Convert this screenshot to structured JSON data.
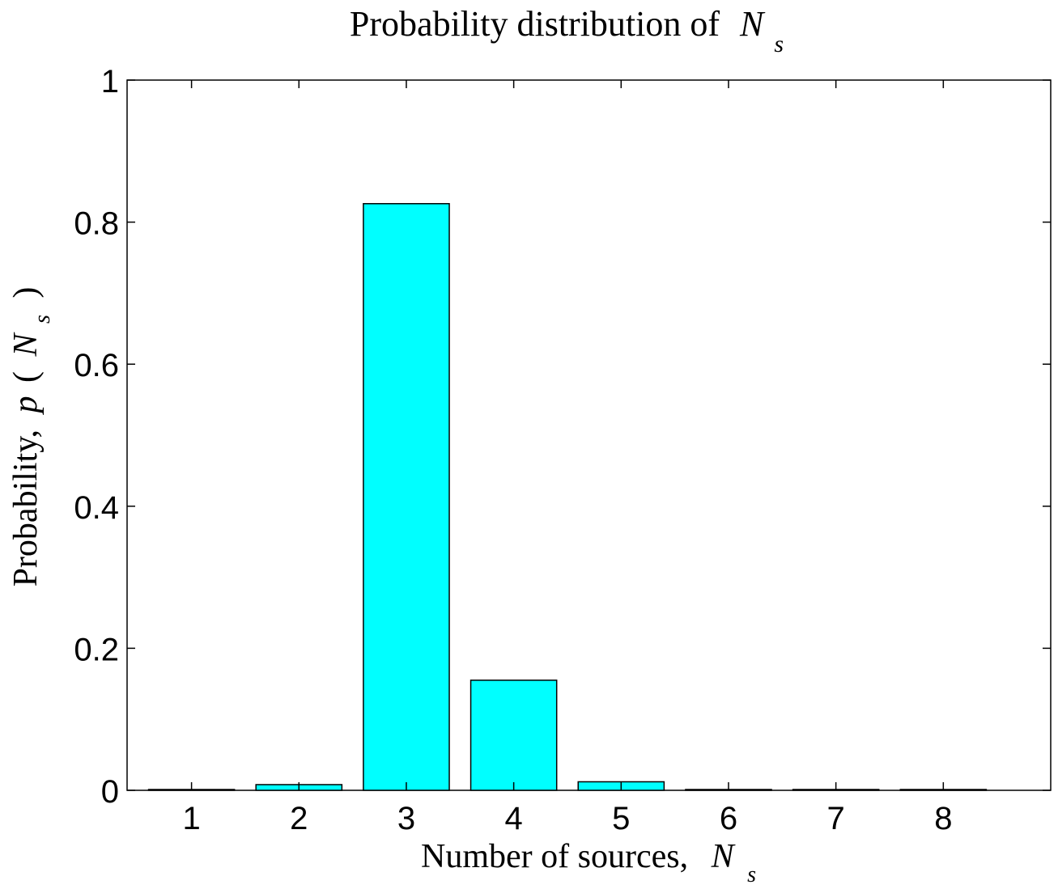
{
  "chart_data": {
    "type": "bar",
    "title_text": "Probability distribution of",
    "title_var": "N",
    "title_sub": "s",
    "xlabel_text": "Number of sources,",
    "xlabel_var": "N",
    "xlabel_sub": "s",
    "ylabel_text": "Probability,",
    "ylabel_var_p": "p",
    "ylabel_open": "(",
    "ylabel_var": "N",
    "ylabel_sub": "s",
    "ylabel_close": ")",
    "categories": [
      "1",
      "2",
      "3",
      "4",
      "5",
      "6",
      "7",
      "8"
    ],
    "values": [
      0.001,
      0.008,
      0.826,
      0.155,
      0.012,
      0.001,
      0,
      0
    ],
    "xlim": [
      0.4,
      9.0
    ],
    "ylim": [
      0,
      1
    ],
    "yticks": [
      "0",
      "0.2",
      "0.4",
      "0.6",
      "0.8",
      "1"
    ],
    "ytick_values": [
      0,
      0.2,
      0.4,
      0.6,
      0.8,
      1.0
    ],
    "bar_color": "#00ffff",
    "edge_color": "#000000",
    "grid": false
  }
}
